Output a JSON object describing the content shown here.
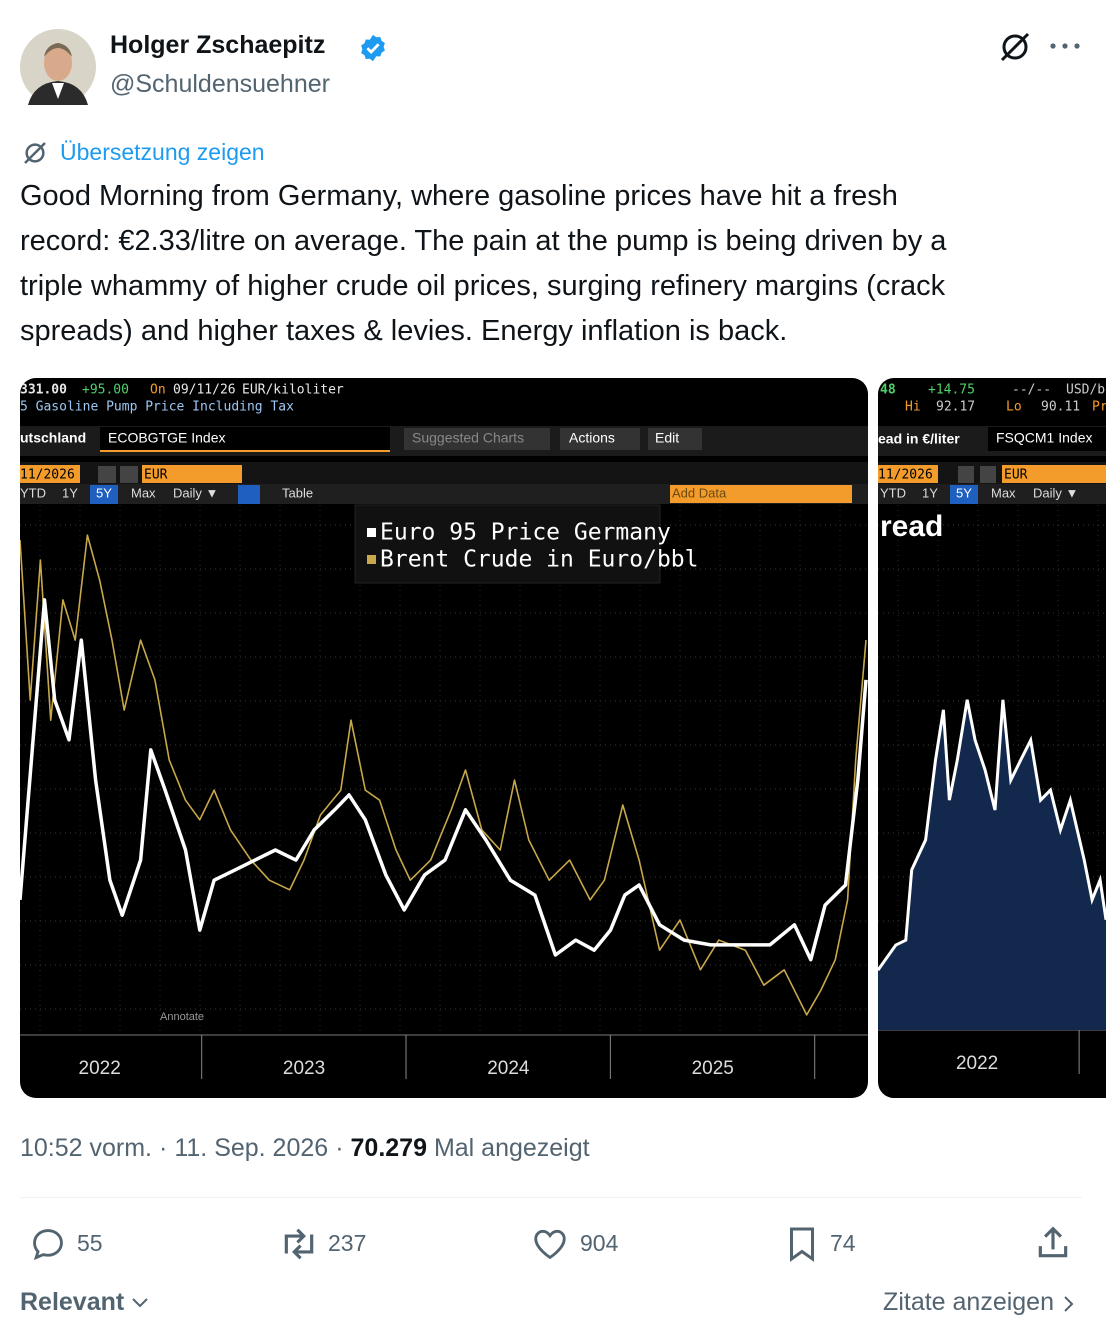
{
  "author": {
    "name": "Holger Zschaepitz",
    "handle": "@Schuldensuehner"
  },
  "translate": "Übersetzung zeigen",
  "post": {
    "text_lines": [
      "Good Morning from Germany, where gasoline prices have hit a fresh",
      "record: €2.33/litre on average. The pain at the pump is being driven by a",
      "triple whammy of higher crude oil prices, surging refinery margins (crack",
      "spreads) and higher taxes & levies. Energy inflation is back."
    ]
  },
  "images": [
    {
      "header": {
        "last": "331.00",
        "change": "+95.00",
        "on": "On",
        "date": "09/11/26",
        "unit": "EUR/kiloliter",
        "description": "5 Gasoline Pump Price Including Tax",
        "country": "utschland",
        "ticker": "ECOBGTGE Index",
        "suggested": "Suggested Charts",
        "actions": "Actions",
        "edit": "Edit",
        "range_date": "11/2026",
        "currency": "EUR",
        "periods": [
          "YTD",
          "1Y",
          "5Y",
          "Max"
        ],
        "frequency": "Daily ▼",
        "table": "Table",
        "add_data": "Add Data",
        "annotate": "Annotate"
      },
      "chart_data": {
        "type": "line",
        "xlim": [
          2021.61,
          2025.76
        ],
        "xticks": [
          2022,
          2023,
          2024,
          2025
        ],
        "ylim": [
          0,
          100
        ],
        "series": [
          {
            "name": "Euro 95 Price Germany",
            "color": "#ffffff",
            "x": [
              2021.61,
              2021.73,
              2021.78,
              2021.85,
              2021.91,
              2021.98,
              2022.05,
              2022.11,
              2022.2,
              2022.25,
              2022.32,
              2022.42,
              2022.49,
              2022.56,
              2022.66,
              2022.76,
              2022.86,
              2022.96,
              2023.05,
              2023.15,
              2023.22,
              2023.3,
              2023.4,
              2023.49,
              2023.59,
              2023.69,
              2023.79,
              2023.89,
              2024.01,
              2024.13,
              2024.23,
              2024.33,
              2024.42,
              2024.5,
              2024.57,
              2024.64,
              2024.74,
              2024.86,
              2024.99,
              2025.13,
              2025.28,
              2025.4,
              2025.48,
              2025.55,
              2025.65,
              2025.71,
              2025.75
            ],
            "values": [
              25.5,
              82.1,
              63.2,
              55.7,
              74.5,
              48.1,
              29.2,
              22.6,
              33.0,
              53.8,
              46.2,
              34.9,
              19.8,
              29.2,
              31.1,
              33.0,
              34.9,
              33.0,
              38.7,
              42.5,
              45.3,
              40.6,
              30.2,
              23.6,
              30.2,
              33.0,
              42.5,
              36.8,
              29.2,
              26.4,
              15.1,
              17.9,
              16.0,
              19.8,
              26.4,
              28.3,
              20.8,
              17.9,
              17.0,
              17.0,
              17.0,
              20.8,
              14.2,
              24.5,
              28.3,
              48.1,
              67.0
            ]
          },
          {
            "name": "Brent Crude in Euro/bbl",
            "color": "#c8a84a",
            "x": [
              2021.61,
              2021.66,
              2021.71,
              2021.76,
              2021.82,
              2021.88,
              2021.94,
              2022.0,
              2022.06,
              2022.12,
              2022.2,
              2022.27,
              2022.34,
              2022.42,
              2022.49,
              2022.56,
              2022.64,
              2022.74,
              2022.83,
              2022.93,
              2023.0,
              2023.08,
              2023.18,
              2023.23,
              2023.3,
              2023.37,
              2023.45,
              2023.52,
              2023.62,
              2023.72,
              2023.79,
              2023.87,
              2023.96,
              2024.03,
              2024.1,
              2024.2,
              2024.3,
              2024.4,
              2024.47,
              2024.56,
              2024.64,
              2024.74,
              2024.84,
              2024.94,
              2025.03,
              2025.16,
              2025.25,
              2025.35,
              2025.46,
              2025.53,
              2025.6,
              2025.66,
              2025.7,
              2025.75
            ],
            "values": [
              93.4,
              63.2,
              89.6,
              59.4,
              82.1,
              74.5,
              94.3,
              85.8,
              74.5,
              61.3,
              74.5,
              67.0,
              51.9,
              44.3,
              40.6,
              46.2,
              38.7,
              33.0,
              29.2,
              27.4,
              33.0,
              41.5,
              46.2,
              59.4,
              46.2,
              44.3,
              34.9,
              29.2,
              33.0,
              42.5,
              50.0,
              38.7,
              34.9,
              48.1,
              36.8,
              29.2,
              33.0,
              25.5,
              29.2,
              43.4,
              33.0,
              16.0,
              21.7,
              12.3,
              17.9,
              16.0,
              9.4,
              12.3,
              3.8,
              8.5,
              14.2,
              25.5,
              51.9,
              74.5
            ]
          }
        ]
      }
    },
    {
      "header": {
        "last": "48",
        "change": "+14.75",
        "dashes": "--/--",
        "unit": "USD/ba",
        "hi": "Hi",
        "hi_value": "92.17",
        "lo": "Lo",
        "lo_value": "90.11",
        "pr": "Pr",
        "description": "ead in €/liter",
        "ticker": "FSQCM1 Index",
        "range_date": "11/2026",
        "currency": "EUR",
        "periods": [
          "YTD",
          "1Y",
          "5Y",
          "Max"
        ],
        "frequency": "Daily ▼"
      },
      "chart_data": {
        "type": "area",
        "title": "read",
        "xlim": [
          2021.5,
          2022.65
        ],
        "xticks": [
          2022
        ],
        "ylim": [
          0,
          100
        ],
        "series": [
          {
            "color": "#ffffff",
            "fill": "#13284d",
            "x": [
              2021.5,
              2021.59,
              2021.64,
              2021.67,
              2021.74,
              2021.79,
              2021.83,
              2021.86,
              2021.9,
              2021.95,
              2021.99,
              2022.04,
              2022.09,
              2022.13,
              2022.17,
              2022.22,
              2022.27,
              2022.32,
              2022.37,
              2022.42,
              2022.47,
              2022.54,
              2022.58,
              2022.62,
              2022.65
            ],
            "values": [
              11.4,
              16.2,
              17.1,
              30.5,
              36.2,
              51.4,
              61.0,
              43.8,
              51.4,
              62.9,
              55.2,
              49.5,
              41.9,
              62.9,
              47.6,
              51.4,
              55.2,
              43.8,
              45.7,
              38.1,
              43.8,
              32.4,
              24.8,
              28.6,
              21.0
            ]
          }
        ]
      }
    }
  ],
  "meta": {
    "time": "10:52 vorm.",
    "date": "11. Sep. 2026",
    "views": "70.279",
    "views_label": "Mal angezeigt"
  },
  "actions": {
    "replies": "55",
    "reposts": "237",
    "likes": "904",
    "bookmarks": "74"
  },
  "footer": {
    "sort": "Relevant",
    "quotes": "Zitate anzeigen"
  }
}
